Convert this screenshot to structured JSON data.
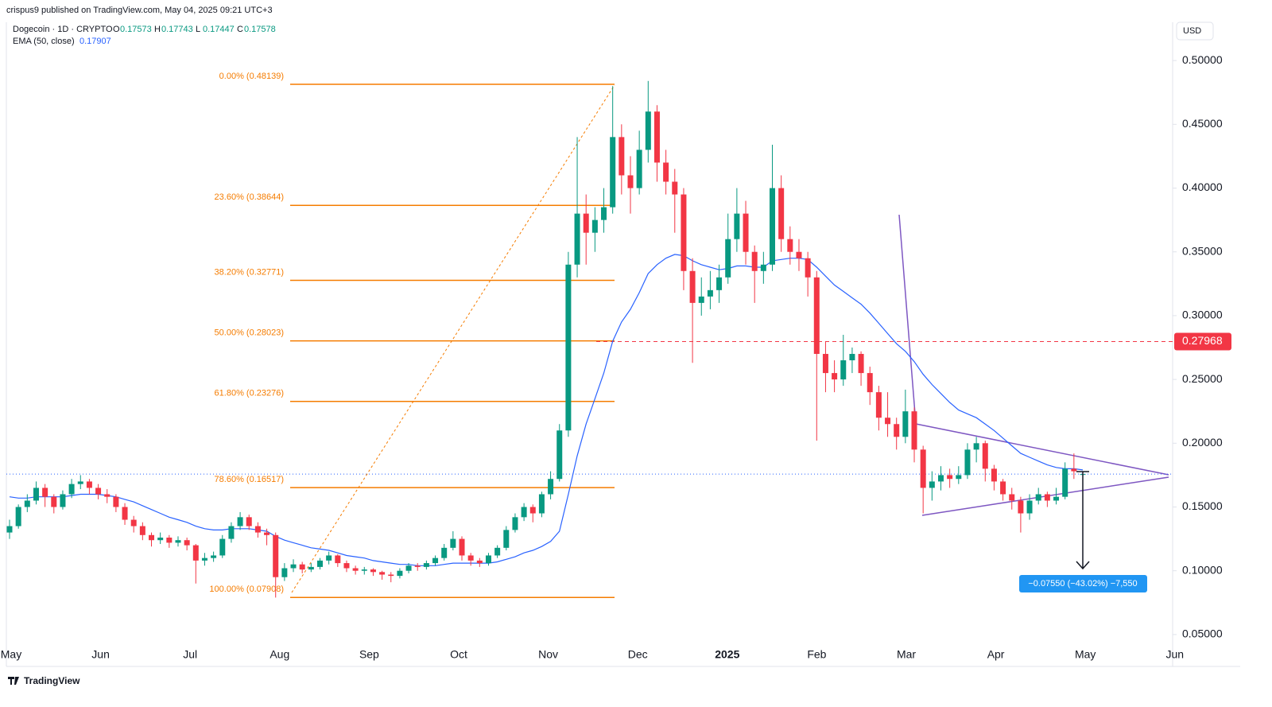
{
  "header": {
    "publisher": "crispus9 published on TradingView.com, May 04, 2025 09:21 UTC+3",
    "symbol": "Dogecoin · 1D · CRYPTO",
    "ohlc_keys": [
      "O",
      "H",
      "L",
      "C"
    ],
    "currency": "USD",
    "brand": "TradingView"
  },
  "chart_data": {
    "type": "candlestick",
    "up_color": "#089981",
    "down_color": "#f23645",
    "months": [
      "May",
      "Jun",
      "Jul",
      "Aug",
      "Sep",
      "Oct",
      "Nov",
      "Dec",
      "2025",
      "Feb",
      "Mar",
      "Apr",
      "May",
      "Jun"
    ],
    "ylim": [
      0.025,
      0.53
    ],
    "yticks": [
      {
        "value": 0.05,
        "label": "0.05000"
      },
      {
        "value": 0.1,
        "label": "0.10000"
      },
      {
        "value": 0.15,
        "label": "0.15000"
      },
      {
        "value": 0.2,
        "label": "0.20000"
      },
      {
        "value": 0.25,
        "label": "0.25000"
      },
      {
        "value": 0.3,
        "label": "0.30000"
      },
      {
        "value": 0.35,
        "label": "0.35000"
      },
      {
        "value": 0.4,
        "label": "0.40000"
      },
      {
        "value": 0.45,
        "label": "0.45000"
      },
      {
        "value": 0.5,
        "label": "0.50000"
      }
    ],
    "candles": [
      [
        0.13,
        0.14,
        0.125,
        0.135
      ],
      [
        0.135,
        0.152,
        0.133,
        0.15
      ],
      [
        0.15,
        0.16,
        0.146,
        0.155
      ],
      [
        0.155,
        0.17,
        0.152,
        0.165
      ],
      [
        0.165,
        0.168,
        0.15,
        0.158
      ],
      [
        0.158,
        0.16,
        0.145,
        0.15
      ],
      [
        0.15,
        0.163,
        0.148,
        0.16
      ],
      [
        0.16,
        0.172,
        0.157,
        0.168
      ],
      [
        0.168,
        0.175,
        0.164,
        0.17
      ],
      [
        0.17,
        0.172,
        0.16,
        0.165
      ],
      [
        0.165,
        0.168,
        0.156,
        0.16
      ],
      [
        0.16,
        0.164,
        0.153,
        0.158
      ],
      [
        0.158,
        0.16,
        0.146,
        0.15
      ],
      [
        0.15,
        0.153,
        0.136,
        0.14
      ],
      [
        0.14,
        0.143,
        0.13,
        0.135
      ],
      [
        0.135,
        0.138,
        0.124,
        0.128
      ],
      [
        0.128,
        0.13,
        0.119,
        0.124
      ],
      [
        0.124,
        0.13,
        0.121,
        0.126
      ],
      [
        0.126,
        0.128,
        0.118,
        0.122
      ],
      [
        0.122,
        0.127,
        0.119,
        0.124
      ],
      [
        0.124,
        0.126,
        0.116,
        0.12
      ],
      [
        0.12,
        0.121,
        0.09,
        0.108
      ],
      [
        0.108,
        0.114,
        0.104,
        0.11
      ],
      [
        0.11,
        0.115,
        0.107,
        0.112
      ],
      [
        0.112,
        0.128,
        0.11,
        0.125
      ],
      [
        0.125,
        0.138,
        0.122,
        0.135
      ],
      [
        0.135,
        0.146,
        0.132,
        0.142
      ],
      [
        0.142,
        0.144,
        0.132,
        0.135
      ],
      [
        0.135,
        0.138,
        0.126,
        0.13
      ],
      [
        0.13,
        0.133,
        0.12,
        0.128
      ],
      [
        0.128,
        0.13,
        0.079,
        0.095
      ],
      [
        0.095,
        0.106,
        0.092,
        0.102
      ],
      [
        0.102,
        0.109,
        0.099,
        0.105
      ],
      [
        0.105,
        0.107,
        0.098,
        0.101
      ],
      [
        0.101,
        0.106,
        0.099,
        0.103
      ],
      [
        0.103,
        0.11,
        0.101,
        0.108
      ],
      [
        0.108,
        0.115,
        0.105,
        0.112
      ],
      [
        0.112,
        0.113,
        0.103,
        0.106
      ],
      [
        0.106,
        0.108,
        0.099,
        0.102
      ],
      [
        0.102,
        0.104,
        0.097,
        0.1
      ],
      [
        0.1,
        0.103,
        0.097,
        0.101
      ],
      [
        0.101,
        0.102,
        0.096,
        0.099
      ],
      [
        0.099,
        0.1,
        0.093,
        0.097
      ],
      [
        0.097,
        0.099,
        0.091,
        0.096
      ],
      [
        0.096,
        0.102,
        0.094,
        0.1
      ],
      [
        0.1,
        0.106,
        0.098,
        0.104
      ],
      [
        0.104,
        0.106,
        0.1,
        0.103
      ],
      [
        0.103,
        0.108,
        0.101,
        0.106
      ],
      [
        0.106,
        0.112,
        0.104,
        0.11
      ],
      [
        0.11,
        0.121,
        0.108,
        0.118
      ],
      [
        0.118,
        0.131,
        0.116,
        0.125
      ],
      [
        0.125,
        0.127,
        0.108,
        0.112
      ],
      [
        0.112,
        0.114,
        0.104,
        0.108
      ],
      [
        0.108,
        0.11,
        0.103,
        0.106
      ],
      [
        0.106,
        0.114,
        0.104,
        0.112
      ],
      [
        0.112,
        0.12,
        0.11,
        0.118
      ],
      [
        0.118,
        0.135,
        0.116,
        0.132
      ],
      [
        0.132,
        0.145,
        0.13,
        0.142
      ],
      [
        0.142,
        0.153,
        0.139,
        0.15
      ],
      [
        0.15,
        0.152,
        0.138,
        0.145
      ],
      [
        0.145,
        0.162,
        0.142,
        0.16
      ],
      [
        0.16,
        0.178,
        0.156,
        0.172
      ],
      [
        0.172,
        0.215,
        0.17,
        0.21
      ],
      [
        0.21,
        0.35,
        0.205,
        0.34
      ],
      [
        0.34,
        0.44,
        0.33,
        0.38
      ],
      [
        0.38,
        0.395,
        0.34,
        0.365
      ],
      [
        0.365,
        0.385,
        0.35,
        0.375
      ],
      [
        0.375,
        0.4,
        0.365,
        0.385
      ],
      [
        0.385,
        0.48,
        0.38,
        0.44
      ],
      [
        0.44,
        0.45,
        0.395,
        0.41
      ],
      [
        0.41,
        0.425,
        0.38,
        0.4
      ],
      [
        0.4,
        0.445,
        0.395,
        0.43
      ],
      [
        0.43,
        0.484,
        0.42,
        0.46
      ],
      [
        0.46,
        0.465,
        0.405,
        0.42
      ],
      [
        0.42,
        0.43,
        0.395,
        0.405
      ],
      [
        0.405,
        0.415,
        0.365,
        0.395
      ],
      [
        0.395,
        0.4,
        0.32,
        0.335
      ],
      [
        0.335,
        0.345,
        0.263,
        0.31
      ],
      [
        0.31,
        0.33,
        0.3,
        0.315
      ],
      [
        0.315,
        0.335,
        0.305,
        0.32
      ],
      [
        0.32,
        0.34,
        0.31,
        0.33
      ],
      [
        0.33,
        0.38,
        0.325,
        0.36
      ],
      [
        0.36,
        0.4,
        0.35,
        0.38
      ],
      [
        0.38,
        0.39,
        0.34,
        0.35
      ],
      [
        0.35,
        0.355,
        0.31,
        0.335
      ],
      [
        0.335,
        0.35,
        0.325,
        0.34
      ],
      [
        0.34,
        0.434,
        0.335,
        0.4
      ],
      [
        0.4,
        0.41,
        0.35,
        0.36
      ],
      [
        0.36,
        0.37,
        0.34,
        0.35
      ],
      [
        0.35,
        0.36,
        0.335,
        0.345
      ],
      [
        0.345,
        0.35,
        0.315,
        0.33
      ],
      [
        0.33,
        0.335,
        0.202,
        0.27
      ],
      [
        0.27,
        0.28,
        0.24,
        0.255
      ],
      [
        0.255,
        0.265,
        0.24,
        0.25
      ],
      [
        0.25,
        0.285,
        0.245,
        0.265
      ],
      [
        0.265,
        0.275,
        0.255,
        0.27
      ],
      [
        0.27,
        0.272,
        0.245,
        0.255
      ],
      [
        0.255,
        0.26,
        0.23,
        0.24
      ],
      [
        0.24,
        0.245,
        0.21,
        0.22
      ],
      [
        0.22,
        0.24,
        0.205,
        0.215
      ],
      [
        0.215,
        0.22,
        0.195,
        0.205
      ],
      [
        0.205,
        0.242,
        0.2,
        0.225
      ],
      [
        0.225,
        0.228,
        0.185,
        0.195
      ],
      [
        0.195,
        0.198,
        0.145,
        0.165
      ],
      [
        0.165,
        0.178,
        0.155,
        0.17
      ],
      [
        0.17,
        0.182,
        0.163,
        0.175
      ],
      [
        0.175,
        0.18,
        0.165,
        0.172
      ],
      [
        0.172,
        0.182,
        0.168,
        0.175
      ],
      [
        0.175,
        0.2,
        0.172,
        0.195
      ],
      [
        0.195,
        0.205,
        0.185,
        0.2
      ],
      [
        0.2,
        0.202,
        0.17,
        0.18
      ],
      [
        0.18,
        0.183,
        0.163,
        0.17
      ],
      [
        0.17,
        0.172,
        0.155,
        0.16
      ],
      [
        0.16,
        0.165,
        0.148,
        0.155
      ],
      [
        0.155,
        0.158,
        0.13,
        0.145
      ],
      [
        0.145,
        0.16,
        0.14,
        0.155
      ],
      [
        0.155,
        0.165,
        0.152,
        0.16
      ],
      [
        0.16,
        0.162,
        0.15,
        0.155
      ],
      [
        0.155,
        0.165,
        0.152,
        0.158
      ],
      [
        0.158,
        0.185,
        0.156,
        0.18
      ],
      [
        0.18,
        0.192,
        0.172,
        0.178
      ],
      [
        0.17573,
        0.17743,
        0.17447,
        0.17578
      ]
    ],
    "ema": {
      "name": "EMA (50, close)",
      "color": "#2962ff",
      "values": [
        0.158,
        0.157,
        0.157,
        0.158,
        0.158,
        0.158,
        0.158,
        0.159,
        0.16,
        0.16,
        0.16,
        0.159,
        0.158,
        0.156,
        0.154,
        0.151,
        0.148,
        0.145,
        0.142,
        0.14,
        0.138,
        0.135,
        0.133,
        0.132,
        0.132,
        0.133,
        0.133,
        0.133,
        0.132,
        0.131,
        0.127,
        0.124,
        0.122,
        0.12,
        0.118,
        0.117,
        0.116,
        0.114,
        0.112,
        0.111,
        0.11,
        0.108,
        0.107,
        0.106,
        0.105,
        0.105,
        0.104,
        0.104,
        0.104,
        0.105,
        0.106,
        0.106,
        0.106,
        0.106,
        0.106,
        0.107,
        0.109,
        0.111,
        0.114,
        0.116,
        0.119,
        0.123,
        0.131,
        0.16,
        0.19,
        0.215,
        0.235,
        0.255,
        0.28,
        0.295,
        0.305,
        0.318,
        0.333,
        0.34,
        0.345,
        0.348,
        0.347,
        0.343,
        0.34,
        0.338,
        0.336,
        0.337,
        0.339,
        0.339,
        0.338,
        0.338,
        0.343,
        0.344,
        0.345,
        0.345,
        0.344,
        0.338,
        0.331,
        0.324,
        0.319,
        0.314,
        0.309,
        0.302,
        0.294,
        0.286,
        0.278,
        0.272,
        0.264,
        0.254,
        0.246,
        0.239,
        0.232,
        0.226,
        0.223,
        0.22,
        0.215,
        0.21,
        0.204,
        0.198,
        0.192,
        0.189,
        0.186,
        0.183,
        0.181,
        0.18,
        0.18,
        0.17907
      ]
    },
    "fib": {
      "color": "#f57c00",
      "levels": [
        {
          "label": "0.00% (0.48139)",
          "value": 0.48139
        },
        {
          "label": "23.60% (0.38644)",
          "value": 0.38644
        },
        {
          "label": "38.20% (0.32771)",
          "value": 0.32771
        },
        {
          "label": "50.00% (0.28023)",
          "value": 0.28023
        },
        {
          "label": "61.80% (0.23276)",
          "value": 0.23276
        },
        {
          "label": "78.60% (0.16517)",
          "value": 0.16517
        },
        {
          "label": "100.00% (0.07908)",
          "value": 0.07908
        }
      ]
    },
    "price_line": {
      "value": 0.27968,
      "color": "#f23645"
    },
    "measure": {
      "label": "−0.07550 (−43.02%) −7,550"
    }
  }
}
